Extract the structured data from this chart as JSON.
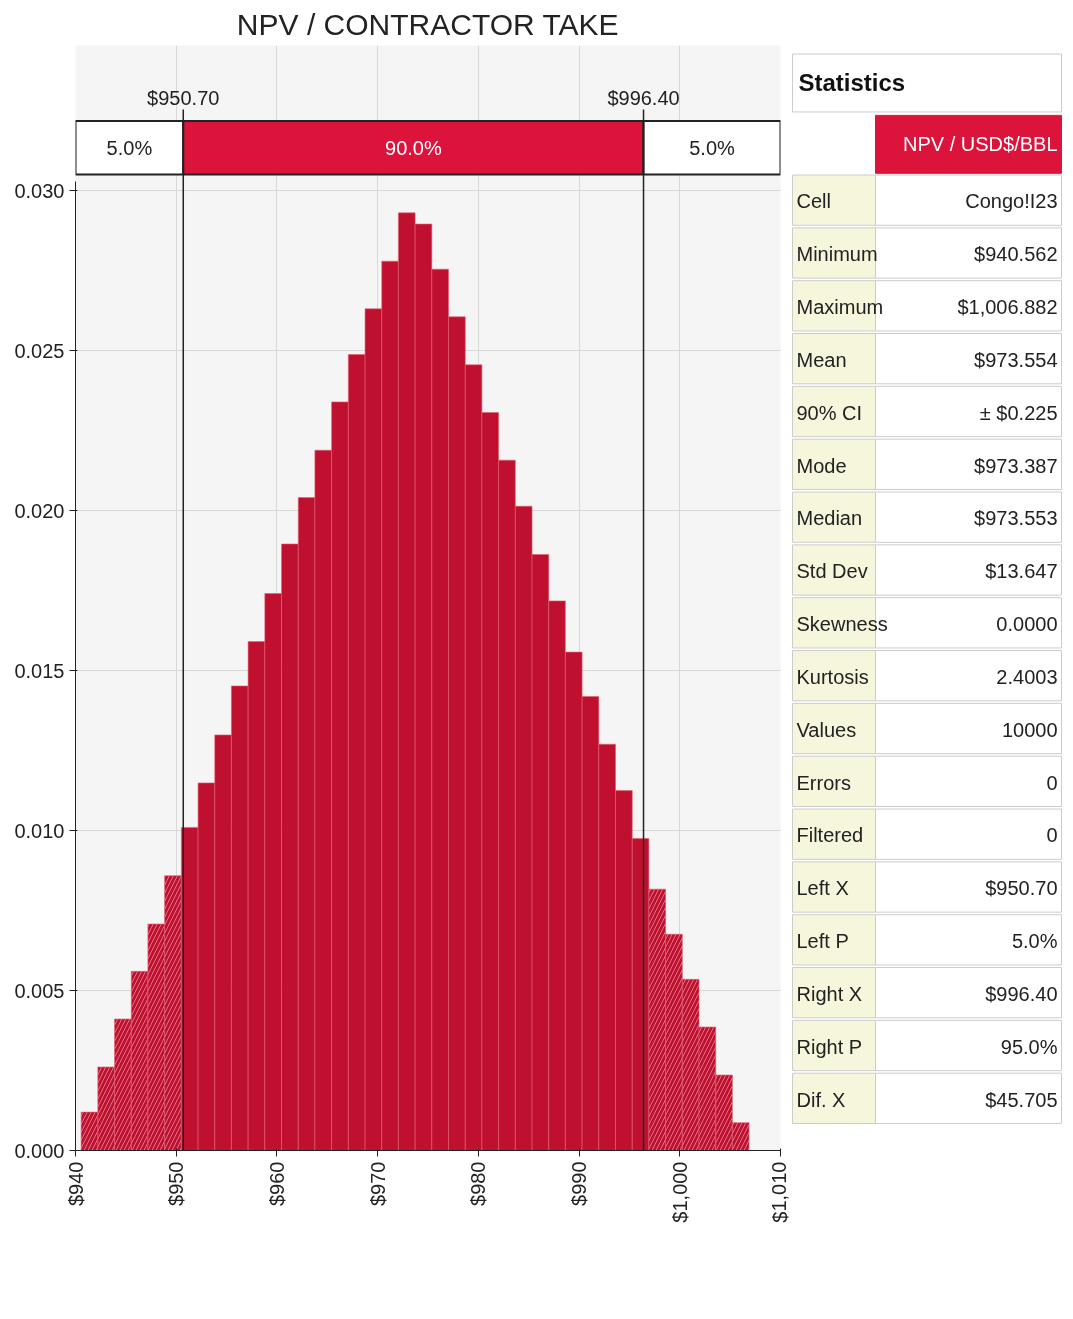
{
  "chart_data": [
    {
      "type": "histogram",
      "title": "NPV / CONTRACTOR TAKE",
      "bins": [
        940.56,
        942.22,
        943.88,
        945.54,
        947.19,
        948.85,
        950.51,
        952.17,
        953.83,
        955.48,
        957.14,
        958.8,
        960.46,
        962.12,
        963.77,
        965.43,
        967.09,
        968.75,
        970.41,
        972.06,
        973.72,
        975.38,
        977.04,
        978.7,
        980.35,
        982.01,
        983.67,
        985.33,
        986.99,
        988.64,
        990.3,
        991.96,
        993.62,
        995.28,
        996.93,
        998.59,
        1000.25,
        1001.91,
        1003.57,
        1005.22,
        1006.88
      ],
      "values": [
        0.0012,
        0.00261,
        0.00411,
        0.0056,
        0.00708,
        0.00859,
        0.0101,
        0.01149,
        0.01299,
        0.01452,
        0.01591,
        0.01741,
        0.01896,
        0.02041,
        0.02189,
        0.0234,
        0.02488,
        0.02631,
        0.0278,
        0.02931,
        0.02896,
        0.02755,
        0.02606,
        0.02456,
        0.02307,
        0.02158,
        0.02014,
        0.01863,
        0.01718,
        0.01558,
        0.01419,
        0.0127,
        0.01125,
        0.00975,
        0.00817,
        0.00676,
        0.00535,
        0.00386,
        0.00236,
        0.00087
      ],
      "color": "#c0102f",
      "xlim": [
        940,
        1010
      ],
      "xticks": [
        {
          "value": 940,
          "label": "$940"
        },
        {
          "value": 950,
          "label": "$950"
        },
        {
          "value": 960,
          "label": "$960"
        },
        {
          "value": 970,
          "label": "$970"
        },
        {
          "value": 980,
          "label": "$980"
        },
        {
          "value": 990,
          "label": "$990"
        },
        {
          "value": 1000,
          "label": "$1,000"
        },
        {
          "value": 1010,
          "label": "$1,010"
        }
      ],
      "ylim": [
        0,
        0.0303
      ],
      "yticks": [
        {
          "value": 0,
          "label": "0.000"
        },
        {
          "value": 0.005,
          "label": "0.005"
        },
        {
          "value": 0.01,
          "label": "0.010"
        },
        {
          "value": 0.015,
          "label": "0.015"
        },
        {
          "value": 0.02,
          "label": "0.020"
        },
        {
          "value": 0.025,
          "label": "0.025"
        },
        {
          "value": 0.03,
          "label": "0.030"
        }
      ],
      "grid": true,
      "ref_lines": [
        {
          "axis": "x",
          "value": 950.7,
          "label": "$950.70"
        },
        {
          "axis": "x",
          "value": 996.4,
          "label": "$996.40"
        }
      ],
      "annotations": [
        "5.0%",
        "90.0%",
        "5.0%"
      ]
    },
    {
      "type": "other",
      "title": "Statistics",
      "subtitle": "NPV / USD$/BBL",
      "categories": [
        "Cell",
        "Minimum",
        "Maximum",
        "Mean",
        "90% CI",
        "Mode",
        "Median",
        "Std Dev",
        "Skewness",
        "Kurtosis",
        "Values",
        "Errors",
        "Filtered",
        "Left X",
        "Left P",
        "Right X",
        "Right P",
        "Dif. X"
      ],
      "value_labels": [
        "Congo!I23",
        "$940.562",
        "$1,006.882",
        "$973.554",
        "± $0.225",
        "$973.387",
        "$973.553",
        "$13.647",
        "0.0000",
        "2.4003",
        "10000",
        "0",
        "0",
        "$950.70",
        "5.0%",
        "$996.40",
        "95.0%",
        "$45.705"
      ]
    }
  ]
}
